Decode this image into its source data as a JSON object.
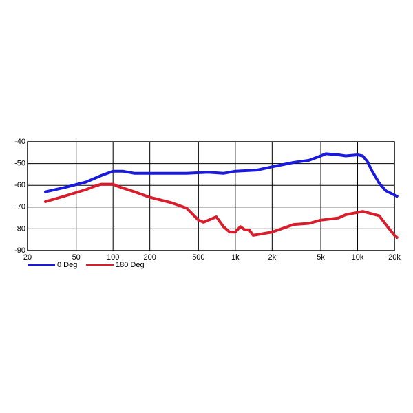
{
  "chart_data": {
    "type": "line",
    "xscale": "log",
    "grid": true,
    "xlim": [
      20,
      20000
    ],
    "ylim": [
      -90,
      -40
    ],
    "xticks": [
      20,
      50,
      100,
      200,
      500,
      {
        "value": 1000,
        "label": "1k"
      },
      {
        "value": 2000,
        "label": "2k"
      },
      {
        "value": 5000,
        "label": "5k"
      },
      {
        "value": 10000,
        "label": "10k"
      },
      {
        "value": 20000,
        "label": "20k"
      }
    ],
    "yticks": [
      -40,
      -50,
      -60,
      -70,
      -80,
      -90
    ],
    "series": [
      {
        "name": "0 Deg",
        "color": "#1a1adc",
        "x": [
          28,
          40,
          60,
          80,
          100,
          120,
          150,
          200,
          300,
          400,
          600,
          800,
          1000,
          1500,
          2000,
          3000,
          4000,
          5000,
          5500,
          7000,
          8000,
          10000,
          11000,
          12000,
          13000,
          15000,
          17000,
          20000,
          21000
        ],
        "values": [
          -63,
          -61,
          -58.5,
          -55.5,
          -53.5,
          -53.5,
          -54.5,
          -54.5,
          -54.5,
          -54.5,
          -54,
          -54.5,
          -53.5,
          -53,
          -51.5,
          -49.5,
          -48.5,
          -46.5,
          -45.5,
          -46,
          -46.5,
          -46,
          -46.5,
          -49,
          -53,
          -59,
          -62.5,
          -64.5,
          -65
        ]
      },
      {
        "name": "180 Deg",
        "color": "#d81e2c",
        "x": [
          28,
          40,
          60,
          70,
          80,
          100,
          110,
          150,
          200,
          300,
          400,
          500,
          550,
          700,
          800,
          900,
          1000,
          1100,
          1200,
          1300,
          1400,
          2000,
          3000,
          4000,
          5000,
          7000,
          8000,
          10000,
          11000,
          15000,
          17000,
          20000,
          21000
        ],
        "values": [
          -67.5,
          -65,
          -62,
          -60.5,
          -59.5,
          -59.5,
          -60.5,
          -63,
          -65.5,
          -68,
          -70.5,
          -76,
          -77,
          -74.5,
          -79,
          -81.5,
          -81.5,
          -79,
          -80.5,
          -80.5,
          -83,
          -81.5,
          -78,
          -77.5,
          -76,
          -75,
          -73.5,
          -72.5,
          -72,
          -74,
          -78,
          -83,
          -84
        ]
      }
    ]
  }
}
